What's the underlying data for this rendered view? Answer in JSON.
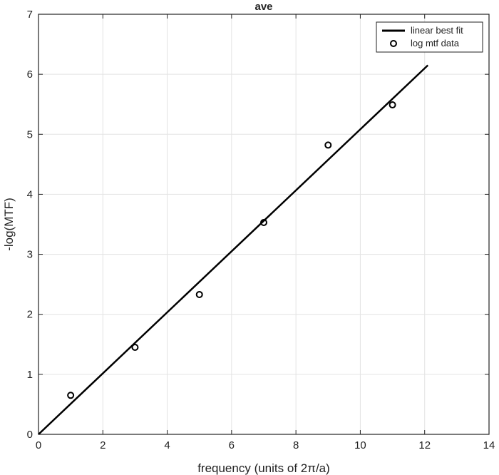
{
  "chart_data": {
    "type": "scatter",
    "title": "ave",
    "xlabel": "frequency (units of 2π/a)",
    "ylabel": "-log(MTF)",
    "xlim": [
      0,
      14
    ],
    "ylim": [
      0,
      7
    ],
    "xticks": [
      "0",
      "2",
      "4",
      "6",
      "8",
      "10",
      "12",
      "14"
    ],
    "yticks": [
      "0",
      "1",
      "2",
      "3",
      "4",
      "5",
      "6",
      "7"
    ],
    "grid": true,
    "legend_position": "top-right",
    "series": [
      {
        "name": "linear best fit",
        "kind": "line",
        "color": "#000000",
        "x": [
          0,
          12.1
        ],
        "y": [
          0,
          6.15
        ]
      },
      {
        "name": "log mtf data",
        "kind": "scatter",
        "marker": "circle",
        "color": "#000000",
        "x": [
          1,
          3,
          5,
          7,
          9,
          11
        ],
        "y": [
          0.65,
          1.45,
          2.33,
          3.53,
          4.82,
          5.49
        ]
      }
    ]
  }
}
